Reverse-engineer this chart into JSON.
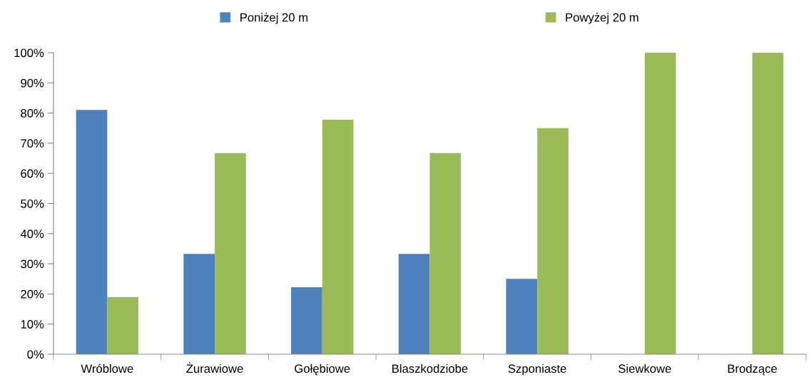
{
  "chart_data": {
    "type": "bar",
    "categories": [
      "Wróblowe",
      "Żurawiowe",
      "Gołębiowe",
      "Blaszkodziobe",
      "Szponiaste",
      "Siewkowe",
      "Brodzące"
    ],
    "series": [
      {
        "name": "Poniżej 20 m",
        "color": "#4f81bd",
        "values": [
          81,
          33.3,
          22.2,
          33.3,
          25,
          0,
          0
        ]
      },
      {
        "name": "Powyżej 20 m",
        "color": "#9bbb59",
        "values": [
          19,
          66.7,
          77.8,
          66.7,
          75,
          100,
          100
        ]
      }
    ],
    "ylim": [
      0,
      100
    ],
    "yticks": [
      {
        "value": 0,
        "label": "0%"
      },
      {
        "value": 10,
        "label": "10%"
      },
      {
        "value": 20,
        "label": "20%"
      },
      {
        "value": 30,
        "label": "30%"
      },
      {
        "value": 40,
        "label": "40%"
      },
      {
        "value": 50,
        "label": "50%"
      },
      {
        "value": 60,
        "label": "60%"
      },
      {
        "value": 70,
        "label": "70%"
      },
      {
        "value": 80,
        "label": "80%"
      },
      {
        "value": 90,
        "label": "90%"
      },
      {
        "value": 100,
        "label": "100%"
      }
    ],
    "grid": false,
    "legend": "top"
  }
}
